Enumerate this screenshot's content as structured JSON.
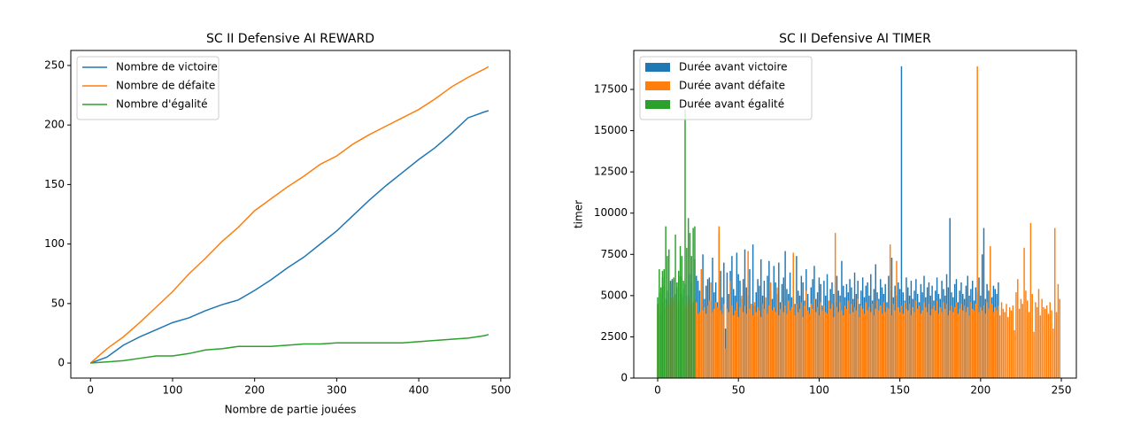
{
  "chart_data": [
    {
      "type": "line",
      "title": "SC II Defensive AI REWARD",
      "xlabel": "Nombre de partie jouées",
      "x": [
        0,
        20,
        40,
        60,
        80,
        100,
        120,
        140,
        160,
        180,
        200,
        220,
        240,
        260,
        280,
        300,
        320,
        340,
        360,
        380,
        400,
        420,
        440,
        460,
        480,
        485
      ],
      "series": [
        {
          "name": "Nombre de victoire",
          "color": "#1f77b4",
          "values": [
            0,
            5,
            15,
            22,
            28,
            34,
            38,
            44,
            49,
            53,
            61,
            70,
            80,
            89,
            100,
            111,
            124,
            137,
            149,
            160,
            171,
            181,
            193,
            206,
            211,
            212
          ]
        },
        {
          "name": "Nombre de défaite",
          "color": "#ff7f0e",
          "values": [
            0,
            12,
            22,
            34,
            47,
            60,
            75,
            88,
            102,
            114,
            128,
            138,
            148,
            157,
            167,
            174,
            184,
            192,
            199,
            206,
            213,
            222,
            232,
            240,
            247,
            249
          ]
        },
        {
          "name": "Nombre d'égalité",
          "color": "#2ca02c",
          "values": [
            0,
            1,
            2,
            4,
            6,
            6,
            8,
            11,
            12,
            14,
            14,
            14,
            15,
            16,
            16,
            17,
            17,
            17,
            17,
            17,
            18,
            19,
            20,
            21,
            23,
            24
          ]
        }
      ],
      "xlim": [
        -24,
        511
      ],
      "ylim": [
        -12.6,
        262.6
      ],
      "xticks": [
        0,
        100,
        200,
        300,
        400,
        500
      ],
      "yticks": [
        0,
        50,
        100,
        150,
        200,
        250
      ],
      "legend": "upper left"
    },
    {
      "type": "bar",
      "title": "SC II Defensive AI TIMER",
      "ylabel": "timer",
      "series": [
        {
          "name": "Durée avant victoire",
          "color": "#1f77b4",
          "values": [
            4500,
            5200,
            3900,
            6100,
            5600,
            4800,
            5300,
            4200,
            5900,
            6000,
            4700,
            5100,
            5500,
            3800,
            6200,
            4900,
            5400,
            5700,
            4300,
            5000,
            6300,
            5800,
            4600,
            7200,
            6200,
            5900,
            5300,
            4400,
            7500,
            4800,
            5600,
            6000,
            6100,
            4700,
            7300,
            5200,
            5800,
            4600,
            8800,
            6500,
            4900,
            7000,
            3000,
            6400,
            5100,
            6500,
            7400,
            5400,
            5000,
            7600,
            6300,
            5900,
            4800,
            6000,
            7800,
            5500,
            5000,
            6600,
            4500,
            8100,
            4400,
            5200,
            6000,
            5600,
            7200,
            5000,
            5900,
            4700,
            6200,
            7100,
            5300,
            4800,
            6800,
            5800,
            5100,
            7000,
            4600,
            5700,
            6100,
            7700,
            5400,
            5100,
            6400,
            4900,
            5900,
            4500,
            7400,
            5300,
            5000,
            6200,
            5800,
            4700,
            6600,
            5100,
            4300,
            5500,
            6000,
            6800,
            4800,
            5200,
            6100,
            5700,
            4400,
            5900,
            5000,
            6300,
            4700,
            5400,
            5800,
            5100,
            4600,
            6200,
            5300,
            5000,
            7100,
            5600,
            4900,
            5700,
            5200,
            6000,
            5500,
            4800,
            6400,
            5100,
            5900,
            4500,
            5300,
            6100,
            4900,
            5600,
            5800,
            5000,
            6300,
            4700,
            5400,
            6900,
            5200,
            4800,
            6000,
            5500,
            5100,
            5700,
            4600,
            6200,
            5300,
            7300,
            4900,
            5600,
            5000,
            5800,
            5400,
            18900,
            5200,
            4700,
            6100,
            5500,
            5000,
            5900,
            4800,
            5300,
            6000,
            5100,
            4600,
            5700,
            5200,
            6200,
            4900,
            5500,
            5800,
            5000,
            5600,
            4700,
            5300,
            6100,
            5100,
            4800,
            5900,
            5400,
            5000,
            6300,
            5500,
            9700,
            5200,
            4900,
            5700,
            6000,
            4600,
            5300,
            5800,
            5100,
            4800,
            5600,
            6200,
            5000,
            5400,
            5900,
            4700,
            5500,
            5200,
            6100,
            5000,
            7500,
            9100,
            4800,
            5700,
            5300,
            6000,
            4900,
            5600,
            5400,
            5100,
            5800
          ]
        },
        {
          "name": "Durée avant défaite",
          "color": "#ff7f0e",
          "values": [
            4400,
            4800,
            5100,
            4600,
            5000,
            4300,
            4700,
            5200,
            4500,
            4900,
            4200,
            5000,
            4600,
            4800,
            4400,
            5100,
            4700,
            4300,
            5000,
            4600,
            4500,
            4900,
            4200,
            4800,
            4600,
            3900,
            4000,
            6600,
            4100,
            4300,
            3900,
            4400,
            4700,
            5800,
            4000,
            4200,
            4600,
            4300,
            9200,
            4100,
            3900,
            4500,
            1800,
            4200,
            4000,
            5900,
            4400,
            3800,
            4100,
            4600,
            3700,
            4300,
            5000,
            4000,
            4400,
            3900,
            7700,
            4200,
            4500,
            3800,
            4600,
            4000,
            4300,
            4100,
            3700,
            4500,
            4200,
            4900,
            3900,
            4400,
            5800,
            4100,
            4300,
            4000,
            5500,
            3800,
            4200,
            4600,
            4000,
            4400,
            3900,
            4700,
            4100,
            4300,
            7600,
            3800,
            4500,
            4000,
            4200,
            4600,
            3700,
            4400,
            5300,
            4100,
            3900,
            4500,
            4200,
            4800,
            4000,
            4300,
            3800,
            4600,
            4100,
            4400,
            4000,
            3900,
            4700,
            4200,
            4500,
            3700,
            8800,
            4300,
            4000,
            4600,
            4100,
            3800,
            4400,
            4200,
            4700,
            3900,
            4500,
            4000,
            4300,
            4100,
            4800,
            3700,
            4400,
            4200,
            3900,
            4600,
            4100,
            4300,
            4000,
            4500,
            3800,
            4200,
            4700,
            4100,
            4400,
            3900,
            4600,
            4000,
            4300,
            4200,
            8100,
            3800,
            4500,
            4100,
            7100,
            4300,
            4000,
            4400,
            3900,
            4600,
            4200,
            4100,
            4500,
            3800,
            4300,
            4000,
            4700,
            4200,
            4400,
            3900,
            4100,
            4600,
            4300,
            4000,
            4500,
            3800,
            4200,
            4400,
            4100,
            4700,
            3900,
            4300,
            4000,
            4600,
            4200,
            4500,
            3800,
            4100,
            4400,
            4000,
            4300,
            4600,
            3900,
            4200,
            4500,
            4100,
            4400,
            4000,
            4300,
            3800,
            4600,
            4200,
            4100,
            4500,
            18900,
            4000,
            4300,
            4100,
            4400,
            3900,
            4600,
            4200,
            8000,
            4500,
            4000,
            4300,
            4100,
            4400,
            3800,
            4600,
            4200,
            4000,
            4500,
            3700,
            4300,
            4100,
            4400,
            2900,
            5200,
            6000,
            4200,
            4800,
            4500,
            7900,
            5300,
            4700,
            4000,
            9400,
            5100,
            2800,
            4600,
            4300,
            5400,
            3800,
            4800,
            4300,
            4200,
            4400,
            3900,
            4600,
            4100,
            3000,
            9100,
            4000,
            5700,
            4800
          ]
        },
        {
          "name": "Durée avant égalité",
          "color": "#2ca02c",
          "values": [
            4900,
            6600,
            5500,
            6500,
            6600,
            9200,
            7400,
            7800,
            5700,
            4900,
            6100,
            8700,
            5800,
            6500,
            8000,
            7400,
            5900,
            16300,
            7900,
            9700,
            8800,
            7400,
            9100,
            9200
          ]
        }
      ],
      "xlim": [
        -14.8,
        259.3
      ],
      "ylim": [
        0,
        19862
      ],
      "xticks": [
        0,
        50,
        100,
        150,
        200,
        250
      ],
      "yticks": [
        0,
        2500,
        5000,
        7500,
        10000,
        12500,
        15000,
        17500
      ],
      "legend": "upper left"
    }
  ]
}
